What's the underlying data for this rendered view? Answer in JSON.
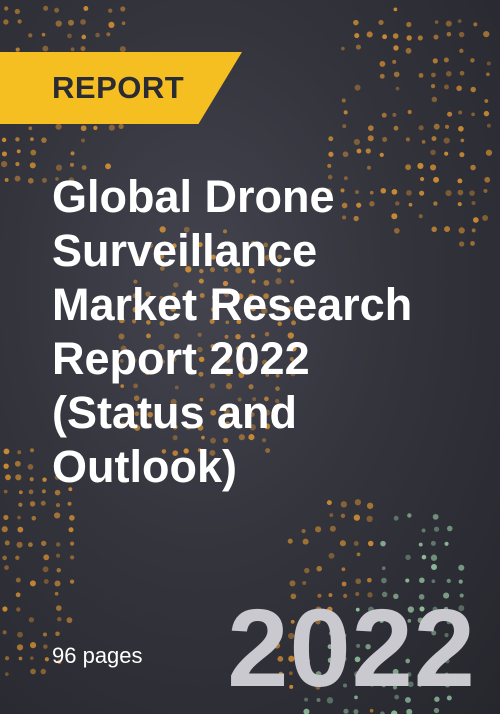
{
  "badge": {
    "label": "REPORT"
  },
  "title_lines": [
    "Global Drone",
    "Surveillance",
    "Market Research",
    "Report 2022",
    "(Status and",
    "Outlook)"
  ],
  "pages": "96 pages",
  "year": "2022",
  "colors": {
    "badge": "#f5bf22",
    "background": "#34343d",
    "dots_warm": "#f0a032",
    "dots_cool": "#a8e0b4"
  }
}
